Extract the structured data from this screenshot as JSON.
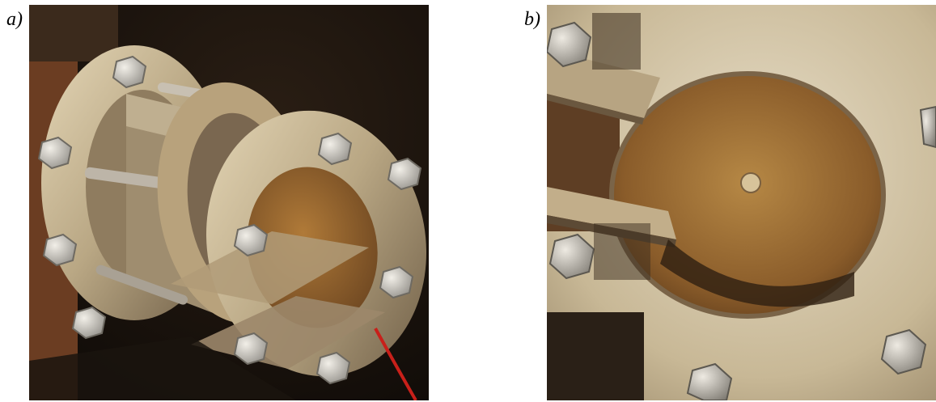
{
  "figure": {
    "panels": [
      {
        "label": "a)",
        "icon": "flange-assembly-photo-icon"
      },
      {
        "label": "b)",
        "icon": "flange-bore-closeup-photo-icon"
      }
    ],
    "colors": {
      "background": "#ffffff",
      "steel_light": "#d8c8a8",
      "steel_mid": "#a89677",
      "steel_dark": "#5e503e",
      "rust": "#8a5a2a",
      "shadow": "#1c150f",
      "cable": "#c8201a"
    }
  }
}
